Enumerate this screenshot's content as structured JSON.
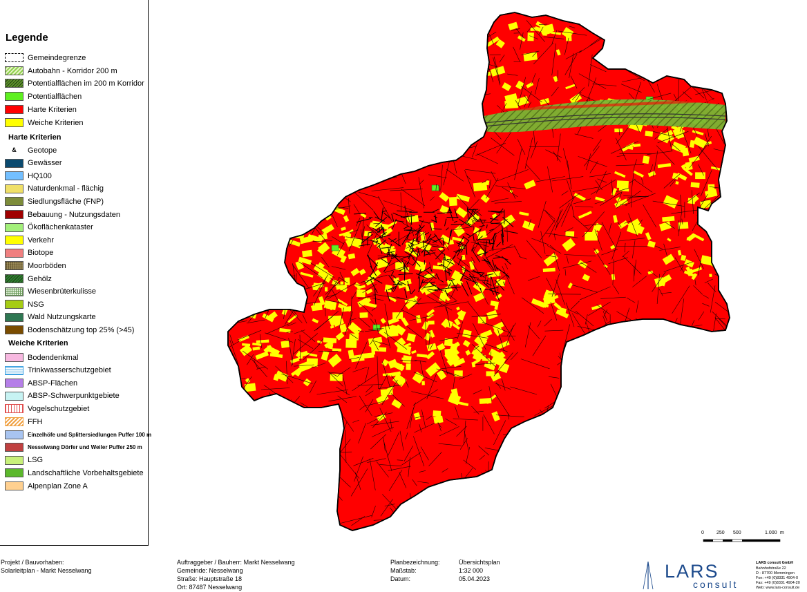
{
  "legend": {
    "title": "Legende",
    "main_items": [
      {
        "label": "Gemeindegrenze",
        "pattern": "dashed",
        "color": "#ffffff"
      },
      {
        "label": "Autobahn - Korridor  200 m",
        "pattern": "hatch",
        "color": "#8fd14f"
      },
      {
        "label": "Potentialflächen im 200 m Korridor",
        "pattern": "hatch-dark",
        "color": "#5e8f2c"
      },
      {
        "label": "Potentialflächen",
        "pattern": "solid",
        "color": "#5ef020"
      },
      {
        "label": "Harte Kriterien",
        "pattern": "solid",
        "color": "#ff0000"
      },
      {
        "label": "Weiche Kriterien",
        "pattern": "solid",
        "color": "#ffff00"
      }
    ],
    "hard_title": "Harte Kriterien",
    "hard_items": [
      {
        "label": "Geotope",
        "pattern": "symbol",
        "color": "#ffffff",
        "symbol": "&"
      },
      {
        "label": "Gewässer",
        "pattern": "solid",
        "color": "#0b4a6f"
      },
      {
        "label": "HQ100",
        "pattern": "solid",
        "color": "#73bfff"
      },
      {
        "label": "Naturdenkmal - flächig",
        "pattern": "solid",
        "color": "#f0e068"
      },
      {
        "label": "Siedlungsfläche (FNP)",
        "pattern": "solid",
        "color": "#7d8c3a"
      },
      {
        "label": "Bebauung - Nutzungsdaten",
        "pattern": "solid",
        "color": "#a00000"
      },
      {
        "label": "Ökoflächenkataster",
        "pattern": "solid",
        "color": "#a3f07a"
      },
      {
        "label": "Verkehr",
        "pattern": "solid",
        "color": "#ffff00"
      },
      {
        "label": "Biotope",
        "pattern": "solid",
        "color": "#f08080"
      },
      {
        "label": "Moorböden",
        "pattern": "dots",
        "color": "#9c8c5a"
      },
      {
        "label": "Gehölz",
        "pattern": "hatch-dark",
        "color": "#2e7d32"
      },
      {
        "label": "Wiesenbrüterkulisse",
        "pattern": "grid",
        "color": "#b8d8a8"
      },
      {
        "label": "NSG",
        "pattern": "solid",
        "color": "#a6cc14"
      },
      {
        "label": "Wald Nutzungskarte",
        "pattern": "solid",
        "color": "#2e7752"
      },
      {
        "label": "Bodenschätzung top 25% (>45)",
        "pattern": "solid",
        "color": "#7a4c00"
      }
    ],
    "soft_title": "Weiche Kriterien",
    "soft_items": [
      {
        "label": "Bodendenkmal",
        "pattern": "solid",
        "color": "#f7b8e0"
      },
      {
        "label": "Trinkwasserschutzgebiet",
        "pattern": "hlines",
        "color": "#3aa0e0"
      },
      {
        "label": "ABSP-Flächen",
        "pattern": "solid",
        "color": "#b57fe8"
      },
      {
        "label": "ABSP-Schwerpunktgebiete",
        "pattern": "solid",
        "color": "#c7f3f3"
      },
      {
        "label": "Vogelschutzgebiet",
        "pattern": "vlines",
        "color": "#e05050"
      },
      {
        "label": "FFH",
        "pattern": "hatch-orange",
        "color": "#f0a040"
      },
      {
        "label": "Einzelhöfe und Splittersiedlungen Puffer 100 m",
        "pattern": "solid",
        "color": "#a8c4f0",
        "small": true
      },
      {
        "label": "Nesselwang Dörfer und Weiler Puffer 250 m",
        "pattern": "solid",
        "color": "#c04040",
        "small": true
      },
      {
        "label": "LSG",
        "pattern": "solid",
        "color": "#c8f07a"
      },
      {
        "label": "Landschaftliche Vorbehaltsgebiete",
        "pattern": "solid",
        "color": "#5cb82c"
      },
      {
        "label": "Alpenplan Zone A",
        "pattern": "solid",
        "color": "#ffd090"
      }
    ]
  },
  "scalebar": {
    "ticks": [
      "0",
      "250",
      "500",
      "1.000"
    ],
    "unit": "m"
  },
  "footer": {
    "project_label": "Projekt / Bauvorhaben:",
    "project_value": "Solarleitplan - Markt Nesselwang",
    "client_label": "Auftraggeber / Bauherr:",
    "client_value": "Markt Nesselwang",
    "municipality_label": "Gemeinde:",
    "municipality_value": "Nesselwang",
    "street_label": "Straße:",
    "street_value": "Hauptstraße 18",
    "town_label": "Ort:",
    "town_value": "87487 Nesselwang",
    "plan_label": "Planbezeichnung:",
    "plan_value": "Übersichtsplan",
    "scale_label": "Maßstab:",
    "scale_value": "1:32 000",
    "date_label": "Datum:",
    "date_value": "05.04.2023"
  },
  "company": {
    "logo_main": "LARS",
    "logo_sub": "consult",
    "name": "LARS consult GmbH",
    "street": "Bahnhofstraße 22",
    "city": "D - 87700 Memmingen",
    "phone": "Fon: +49 (0)8331 4904-0",
    "fax": "Fax: +49 (0)8331 4904-20",
    "web": "Web: www.lars-consult.de"
  },
  "colors": {
    "hard": "#ff0000",
    "soft": "#ffff00",
    "corridor": "#7ab534",
    "border": "#000000"
  }
}
